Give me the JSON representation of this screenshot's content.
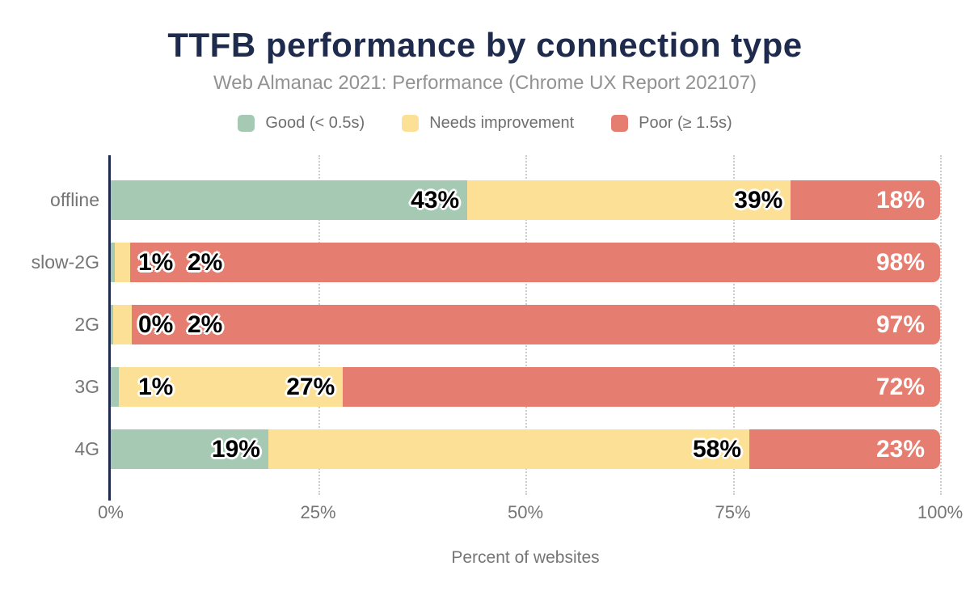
{
  "chart_data": {
    "type": "bar",
    "orientation": "horizontal",
    "stacked": true,
    "title": "TTFB performance by connection type",
    "subtitle": "Web Almanac 2021: Performance (Chrome UX Report 202107)",
    "xlabel": "Percent of websites",
    "categories": [
      "offline",
      "slow-2G",
      "2G",
      "3G",
      "4G"
    ],
    "series": [
      {
        "name": "Good (< 0.5s)",
        "color": "#a5c9b3",
        "values": [
          43,
          1,
          0,
          1,
          19
        ]
      },
      {
        "name": "Needs improvement",
        "color": "#fce096",
        "values": [
          39,
          2,
          2,
          27,
          58
        ]
      },
      {
        "name": "Poor (≥ 1.5s)",
        "color": "#e57e70",
        "values": [
          18,
          98,
          97,
          72,
          23
        ]
      }
    ],
    "xlim": [
      0,
      100
    ],
    "x_ticks": [
      "0%",
      "25%",
      "50%",
      "75%",
      "100%"
    ],
    "tick_positions": [
      0,
      25,
      50,
      75,
      100
    ],
    "grid": "dotted-vertical",
    "legend_position": "top",
    "rows": [
      {
        "category": "offline",
        "widths": [
          43,
          39,
          18
        ],
        "labels": [
          "43%",
          "39%",
          "18%"
        ],
        "modes": [
          "end",
          "end",
          "endwhite"
        ]
      },
      {
        "category": "slow-2G",
        "widths": [
          0.5,
          1.8,
          97.7
        ],
        "labels": [
          "1%",
          "2%",
          "98%"
        ],
        "modes": [
          "float:34",
          "float:95",
          "endwhite"
        ]
      },
      {
        "category": "2G",
        "widths": [
          0.3,
          2.2,
          97.5
        ],
        "labels": [
          "0%",
          "2%",
          "97%"
        ],
        "modes": [
          "float:34",
          "float:95",
          "endwhite"
        ]
      },
      {
        "category": "3G",
        "widths": [
          1,
          27,
          72
        ],
        "labels": [
          "1%",
          "27%",
          "72%"
        ],
        "modes": [
          "float:34",
          "end",
          "endwhite"
        ]
      },
      {
        "category": "4G",
        "widths": [
          19,
          58,
          23
        ],
        "labels": [
          "19%",
          "58%",
          "23%"
        ],
        "modes": [
          "end",
          "end",
          "endwhite"
        ]
      }
    ],
    "colors": {
      "title": "#1e2b4d",
      "axis": "#1e2b4d",
      "labels": "#757575",
      "gridline": "#cccccc"
    }
  }
}
